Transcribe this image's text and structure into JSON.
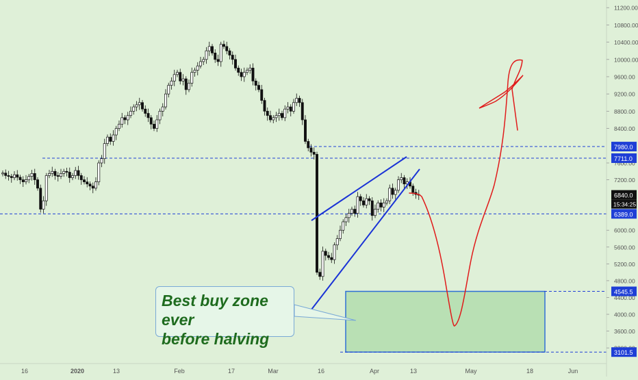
{
  "chart_data": {
    "type": "candlestick",
    "x_labels": [
      "16",
      "2020",
      "13",
      "Feb",
      "17",
      "Mar",
      "16",
      "Apr",
      "13",
      "May",
      "18",
      "Jun"
    ],
    "y_ticks": [
      "11200.00",
      "10800.00",
      "10400.00",
      "10000.00",
      "9600.00",
      "9200.00",
      "8800.00",
      "8400.00",
      "7600.00",
      "7200.00",
      "6000.00",
      "5600.00",
      "5200.00",
      "4800.00",
      "4400.00",
      "4000.00",
      "3600.00",
      "3200.00"
    ],
    "ylim": [
      3000,
      11350
    ],
    "level_labels": [
      {
        "value": 7980.0,
        "text": "7980.0"
      },
      {
        "value": 7711.0,
        "text": "7711.0"
      },
      {
        "value": 6840.0,
        "text": "6840.0"
      },
      {
        "value": 6389.0,
        "text": "6389.0"
      },
      {
        "value": 4545.5,
        "text": "4545.5"
      },
      {
        "value": 3101.5,
        "text": "3101.5"
      }
    ],
    "countdown": "15:34:25",
    "last_price": 6840.0,
    "annotation": {
      "line1": "Best buy zone ever",
      "line2": "before halving"
    },
    "buy_zone": [
      3101.5,
      4545.5
    ],
    "colors": {
      "up": "#ffffff",
      "down": "#111111",
      "level": "#1f3fd6",
      "projection": "#e01b1b",
      "zone": "#b9e0b4",
      "zone_border": "#2f6fd6",
      "background": "#dff0d8"
    },
    "series_close": [
      7360,
      7300,
      7280,
      7250,
      7320,
      7260,
      7200,
      7150,
      7200,
      7280,
      7350,
      7200,
      7000,
      6500,
      6700,
      7300,
      7350,
      7400,
      7300,
      7280,
      7350,
      7400,
      7380,
      7250,
      7300,
      7420,
      7300,
      7200,
      7150,
      7100,
      7050,
      7000,
      7150,
      7600,
      7700,
      8050,
      8200,
      8100,
      8250,
      8400,
      8500,
      8650,
      8600,
      8700,
      8800,
      8900,
      8950,
      9000,
      8850,
      8750,
      8650,
      8500,
      8400,
      8600,
      8800,
      8900,
      9200,
      9400,
      9500,
      9650,
      9700,
      9500,
      9550,
      9300,
      9450,
      9700,
      9750,
      9850,
      9950,
      10000,
      10200,
      10300,
      10150,
      10000,
      9950,
      10350,
      10300,
      10200,
      10100,
      10000,
      9800,
      9700,
      9600,
      9700,
      9750,
      9800,
      9500,
      9400,
      9300,
      9050,
      8800,
      8700,
      8600,
      8650,
      8700,
      8750,
      8650,
      8850,
      8900,
      8800,
      9000,
      9100,
      9000,
      8600,
      8100,
      7950,
      7850,
      7800,
      5000,
      4900,
      5500,
      5400,
      5350,
      5300,
      5650,
      5800,
      6000,
      6200,
      6300,
      6400,
      6500,
      6400,
      6800,
      6700,
      6600,
      6750,
      6700,
      6350,
      6500,
      6650,
      6550,
      6650,
      6700,
      7000,
      6850,
      6950,
      7200,
      7250,
      7100,
      7150,
      7050,
      6900,
      6850,
      6840
    ]
  }
}
